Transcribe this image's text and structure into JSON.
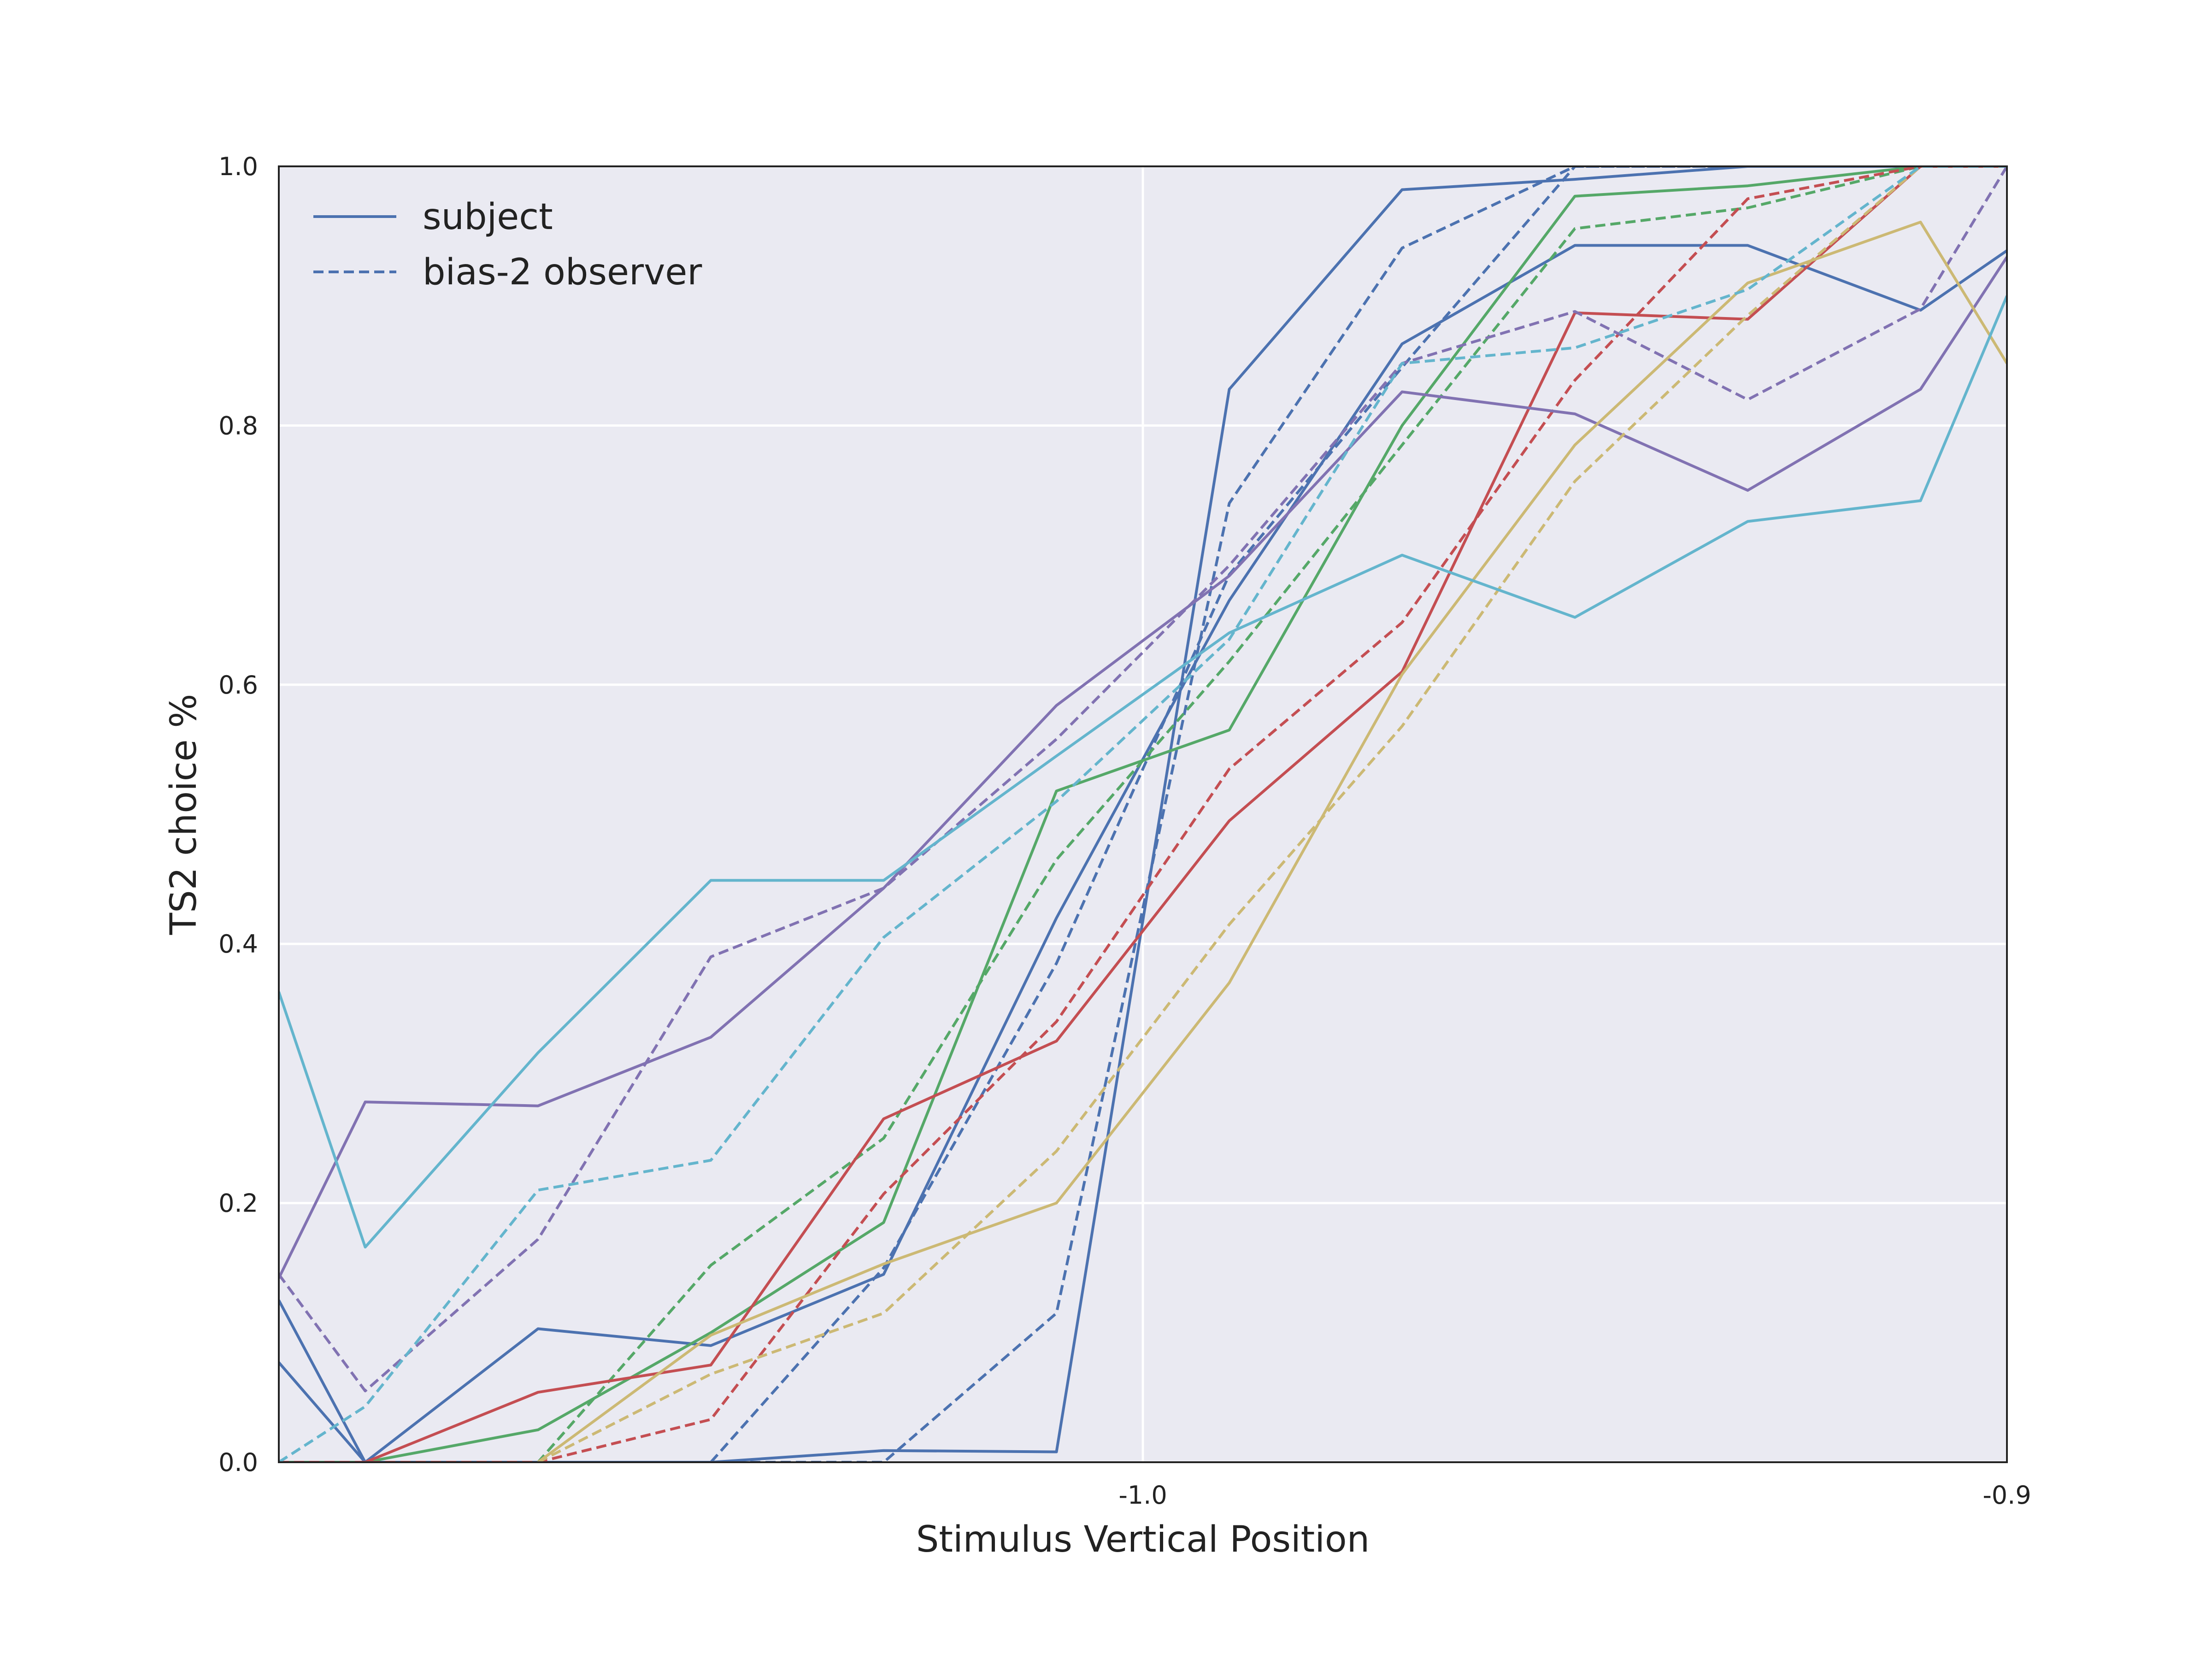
{
  "chart_data": {
    "type": "line",
    "xlabel": "Stimulus Vertical Position",
    "ylabel": "TS2 choice %",
    "xlim": [
      -1.1,
      -0.9
    ],
    "ylim": [
      0.0,
      1.0
    ],
    "x_ticks": [
      {
        "value": -1.0,
        "label": "-1.0"
      },
      {
        "value": -0.9,
        "label": "-0.9"
      }
    ],
    "y_ticks": [
      {
        "value": 0.0,
        "label": "0.0"
      },
      {
        "value": 0.2,
        "label": "0.2"
      },
      {
        "value": 0.4,
        "label": "0.4"
      },
      {
        "value": 0.6,
        "label": "0.6"
      },
      {
        "value": 0.8,
        "label": "0.8"
      },
      {
        "value": 1.0,
        "label": "1.0"
      }
    ],
    "grid": true,
    "legend": {
      "position": "top-left",
      "entries": [
        {
          "label": "subject",
          "style": "solid",
          "color": "#4c72b0"
        },
        {
          "label": "bias-2 observer",
          "style": "dashed",
          "color": "#4c72b0"
        }
      ]
    },
    "x": [
      -1.1,
      -1.09,
      -1.07,
      -1.05,
      -1.03,
      -1.01,
      -0.99,
      -0.97,
      -0.95,
      -0.93,
      -0.91,
      -0.9
    ],
    "series": [
      {
        "color": "#4c72b0",
        "style": "solid",
        "values": [
          0.125,
          0.0,
          0.103,
          0.09,
          0.145,
          0.42,
          0.665,
          0.863,
          0.939,
          0.939,
          0.889,
          0.935
        ]
      },
      {
        "color": "#4c72b0",
        "style": "dashed",
        "values": [
          null,
          null,
          null,
          0.0,
          0.15,
          0.385,
          0.685,
          0.845,
          1.0,
          1.0,
          1.0,
          1.0
        ]
      },
      {
        "color": "#4c72b0",
        "style": "solid",
        "values": [
          0.077,
          0.0,
          0.0,
          0.0,
          0.009,
          0.008,
          0.828,
          0.982,
          0.99,
          1.0,
          1.0,
          1.0
        ]
      },
      {
        "color": "#4c72b0",
        "style": "dashed",
        "values": [
          0.0,
          0.0,
          0.0,
          0.0,
          0.0,
          0.115,
          0.74,
          0.937,
          1.0,
          1.0,
          1.0,
          1.0
        ]
      },
      {
        "color": "#55a868",
        "style": "solid",
        "values": [
          0.0,
          0.0,
          0.025,
          0.1,
          0.185,
          0.518,
          0.565,
          0.8,
          0.977,
          0.985,
          1.0,
          1.0
        ]
      },
      {
        "color": "#55a868",
        "style": "dashed",
        "values": [
          0.0,
          0.0,
          0.0,
          0.152,
          0.25,
          0.465,
          0.618,
          0.785,
          0.952,
          0.968,
          1.0,
          1.0
        ]
      },
      {
        "color": "#c44e52",
        "style": "solid",
        "values": [
          null,
          0.0,
          0.054,
          0.075,
          0.265,
          0.325,
          0.495,
          0.61,
          0.887,
          0.882,
          1.0,
          1.0
        ]
      },
      {
        "color": "#c44e52",
        "style": "dashed",
        "values": [
          0.0,
          0.0,
          0.0,
          0.033,
          0.207,
          0.34,
          0.535,
          0.648,
          0.835,
          0.975,
          1.0,
          1.0
        ]
      },
      {
        "color": "#8172b2",
        "style": "solid",
        "values": [
          0.142,
          0.278,
          0.275,
          0.328,
          0.443,
          0.584,
          0.684,
          0.826,
          0.809,
          0.75,
          0.828,
          0.93
        ]
      },
      {
        "color": "#8172b2",
        "style": "dashed",
        "values": [
          0.145,
          0.055,
          0.172,
          0.39,
          0.443,
          0.558,
          0.692,
          0.848,
          0.888,
          0.82,
          0.89,
          1.0
        ]
      },
      {
        "color": "#ccb974",
        "style": "solid",
        "values": [
          null,
          null,
          0.0,
          0.098,
          0.153,
          0.2,
          0.37,
          0.608,
          0.785,
          0.91,
          0.957,
          0.848
        ]
      },
      {
        "color": "#ccb974",
        "style": "dashed",
        "values": [
          null,
          null,
          0.0,
          0.068,
          0.115,
          0.24,
          0.415,
          0.568,
          0.757,
          0.885,
          1.0,
          1.0
        ]
      },
      {
        "color": "#64b5cd",
        "style": "solid",
        "values": [
          0.363,
          0.166,
          0.316,
          0.449,
          0.449,
          0.545,
          0.64,
          0.7,
          0.652,
          0.726,
          0.742,
          0.9
        ]
      },
      {
        "color": "#64b5cd",
        "style": "dashed",
        "values": [
          0.0,
          0.043,
          0.21,
          0.233,
          0.405,
          0.51,
          0.635,
          0.848,
          0.86,
          0.905,
          1.0,
          1.0
        ]
      }
    ]
  }
}
